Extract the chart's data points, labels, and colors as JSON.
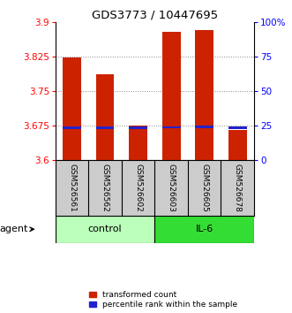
{
  "title": "GDS3773 / 10447695",
  "samples": [
    "GSM526561",
    "GSM526562",
    "GSM526602",
    "GSM526603",
    "GSM526605",
    "GSM526678"
  ],
  "ylim_left": [
    3.6,
    3.9
  ],
  "yticks_left": [
    3.6,
    3.675,
    3.75,
    3.825,
    3.9
  ],
  "ytick_labels_left": [
    "3.6",
    "3.675",
    "3.75",
    "3.825",
    "3.9"
  ],
  "yticks_right": [
    0,
    25,
    50,
    75,
    100
  ],
  "ytick_labels_right": [
    "0",
    "25",
    "50",
    "75",
    "100%"
  ],
  "bar_bottoms": [
    3.6,
    3.6,
    3.6,
    3.6,
    3.6,
    3.6
  ],
  "bar_tops": [
    3.822,
    3.787,
    3.675,
    3.878,
    3.882,
    3.665
  ],
  "percentile_bottoms_left": [
    3.6675,
    3.6675,
    3.6675,
    3.669,
    3.67,
    3.6675
  ],
  "percentile_bar_height": 0.005,
  "bar_color": "#cc2200",
  "percentile_color": "#2222cc",
  "control_bg": "#bbffbb",
  "il6_bg": "#33dd33",
  "sample_bg": "#cccccc",
  "legend_items": [
    {
      "label": "transformed count",
      "color": "#cc2200"
    },
    {
      "label": "percentile rank within the sample",
      "color": "#2222cc"
    }
  ],
  "bar_width": 0.55,
  "grid_color": "#888888"
}
